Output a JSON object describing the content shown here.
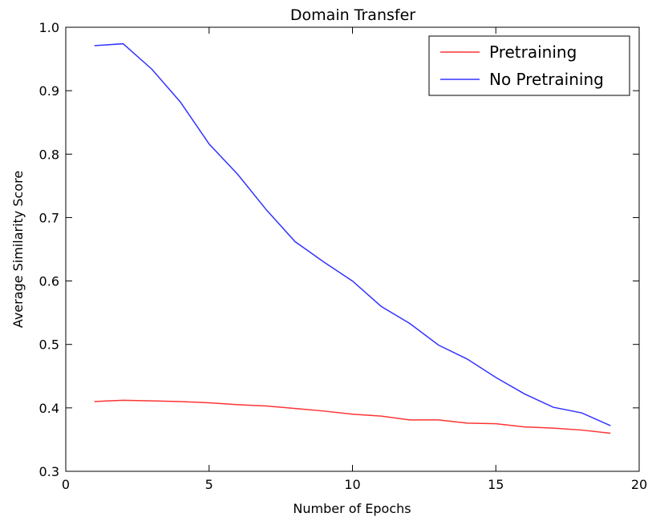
{
  "chart_data": {
    "type": "line",
    "title": "Domain Transfer",
    "xlabel": "Number of Epochs",
    "ylabel": "Average Similarity Score",
    "xlim": [
      0,
      20
    ],
    "ylim": [
      0.3,
      1.0
    ],
    "xticks": [
      "0",
      "5",
      "10",
      "15",
      "20"
    ],
    "yticks": [
      "0.3",
      "0.4",
      "0.5",
      "0.6",
      "0.7",
      "0.8",
      "0.9",
      "1.0"
    ],
    "grid": false,
    "legend_position": "top-right",
    "x": [
      1,
      2,
      3,
      4,
      5,
      6,
      7,
      8,
      9,
      10,
      11,
      12,
      13,
      14,
      15,
      16,
      17,
      18,
      19
    ],
    "series": [
      {
        "name": "Pretraining",
        "color": "#ff3333",
        "values": [
          0.41,
          0.412,
          0.411,
          0.41,
          0.408,
          0.405,
          0.403,
          0.399,
          0.395,
          0.39,
          0.387,
          0.381,
          0.381,
          0.376,
          0.375,
          0.37,
          0.368,
          0.365,
          0.36
        ]
      },
      {
        "name": "No Pretraining",
        "color": "#3333ff",
        "values": [
          0.971,
          0.974,
          0.934,
          0.882,
          0.816,
          0.768,
          0.712,
          0.662,
          0.63,
          0.6,
          0.56,
          0.533,
          0.499,
          0.477,
          0.448,
          0.422,
          0.401,
          0.392,
          0.372
        ]
      }
    ]
  }
}
